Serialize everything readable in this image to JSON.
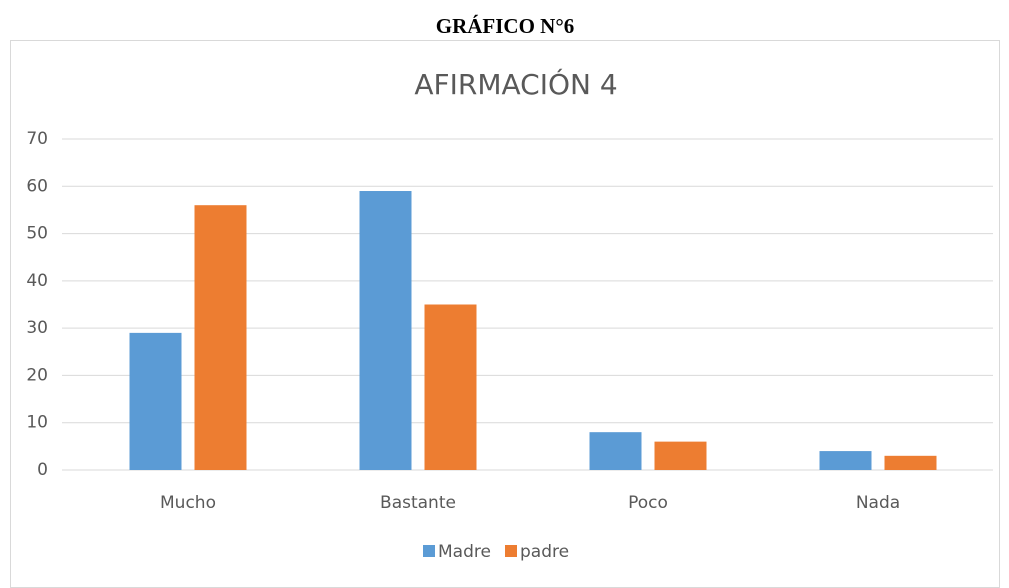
{
  "heading": "GRÁFICO N°6",
  "chart_data": {
    "type": "bar",
    "title": "AFIRMACIÓN 4",
    "categories": [
      "Mucho",
      "Bastante",
      "Poco",
      "Nada"
    ],
    "series": [
      {
        "name": "Madre",
        "color": "#5b9bd5",
        "values": [
          29,
          59,
          8,
          4
        ]
      },
      {
        "name": "padre",
        "color": "#ed7d31",
        "values": [
          56,
          35,
          6,
          3
        ]
      }
    ],
    "ylim": [
      0,
      70
    ],
    "yticks": [
      0,
      10,
      20,
      30,
      40,
      50,
      60,
      70
    ],
    "grid": true,
    "legend": "bottom"
  }
}
